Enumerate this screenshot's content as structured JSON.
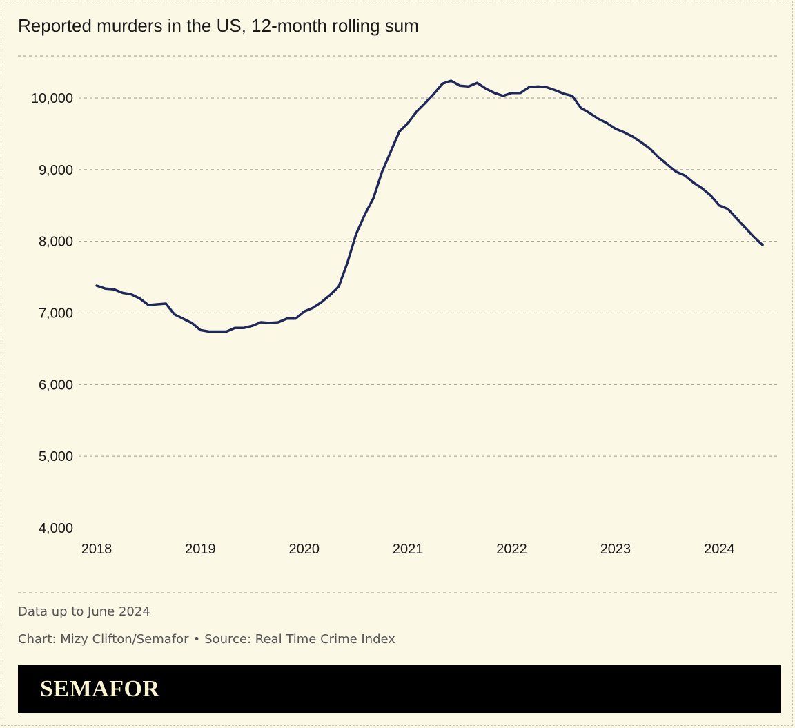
{
  "colors": {
    "background": "#fbf8e6",
    "line": "#1f2858",
    "grid": "#9e9c92",
    "brand_bar": "#000000",
    "brand_text": "#fbf4d2"
  },
  "chart_data": {
    "type": "line",
    "title": "Reported murders in the US, 12-month rolling sum",
    "xlabel": "",
    "ylabel": "",
    "ylim": [
      4000,
      10000
    ],
    "yticks": [
      4000,
      5000,
      6000,
      7000,
      8000,
      9000,
      10000
    ],
    "ytick_labels": [
      "4,000",
      "5,000",
      "6,000",
      "7,000",
      "8,000",
      "9,000",
      "10,000"
    ],
    "xticks": [
      2018,
      2019,
      2020,
      2021,
      2022,
      2023,
      2024
    ],
    "xtick_labels": [
      "2018",
      "2019",
      "2020",
      "2021",
      "2022",
      "2023",
      "2024"
    ],
    "grid": true,
    "series": [
      {
        "x": [
          "2018-01",
          "2018-02",
          "2018-03",
          "2018-04",
          "2018-05",
          "2018-06",
          "2018-07",
          "2018-08",
          "2018-09",
          "2018-10",
          "2018-11",
          "2018-12",
          "2019-01",
          "2019-02",
          "2019-03",
          "2019-04",
          "2019-05",
          "2019-06",
          "2019-07",
          "2019-08",
          "2019-09",
          "2019-10",
          "2019-11",
          "2019-12",
          "2020-01",
          "2020-02",
          "2020-03",
          "2020-04",
          "2020-05",
          "2020-06",
          "2020-07",
          "2020-08",
          "2020-09",
          "2020-10",
          "2020-11",
          "2020-12",
          "2021-01",
          "2021-02",
          "2021-03",
          "2021-04",
          "2021-05",
          "2021-06",
          "2021-07",
          "2021-08",
          "2021-09",
          "2021-10",
          "2021-11",
          "2021-12",
          "2022-01",
          "2022-02",
          "2022-03",
          "2022-04",
          "2022-05",
          "2022-06",
          "2022-07",
          "2022-08",
          "2022-09",
          "2022-10",
          "2022-11",
          "2022-12",
          "2023-01",
          "2023-02",
          "2023-03",
          "2023-04",
          "2023-05",
          "2023-06",
          "2023-07",
          "2023-08",
          "2023-09",
          "2023-10",
          "2023-11",
          "2023-12",
          "2024-01",
          "2024-02",
          "2024-03",
          "2024-04",
          "2024-05",
          "2024-06"
        ],
        "values": [
          7380,
          7340,
          7330,
          7280,
          7260,
          7200,
          7110,
          7120,
          7130,
          6980,
          6920,
          6860,
          6760,
          6740,
          6740,
          6740,
          6790,
          6790,
          6820,
          6870,
          6860,
          6870,
          6920,
          6920,
          7020,
          7070,
          7150,
          7250,
          7370,
          7700,
          8100,
          8370,
          8600,
          8970,
          9250,
          9530,
          9650,
          9810,
          9930,
          10060,
          10200,
          10240,
          10170,
          10160,
          10210,
          10130,
          10070,
          10030,
          10070,
          10070,
          10150,
          10160,
          10150,
          10110,
          10060,
          10030,
          9860,
          9790,
          9710,
          9650,
          9570,
          9520,
          9460,
          9380,
          9290,
          9170,
          9070,
          8970,
          8920,
          8820,
          8740,
          8640,
          8500,
          8450,
          8320,
          8190,
          8060,
          7950
        ]
      }
    ]
  },
  "footer": {
    "note": "Data up to June 2024",
    "credit": "Chart: Mizy Clifton/Semafor",
    "separator": "•",
    "source": "Source: Real Time Crime Index"
  },
  "brand": {
    "logo": "SEMAFOR"
  }
}
